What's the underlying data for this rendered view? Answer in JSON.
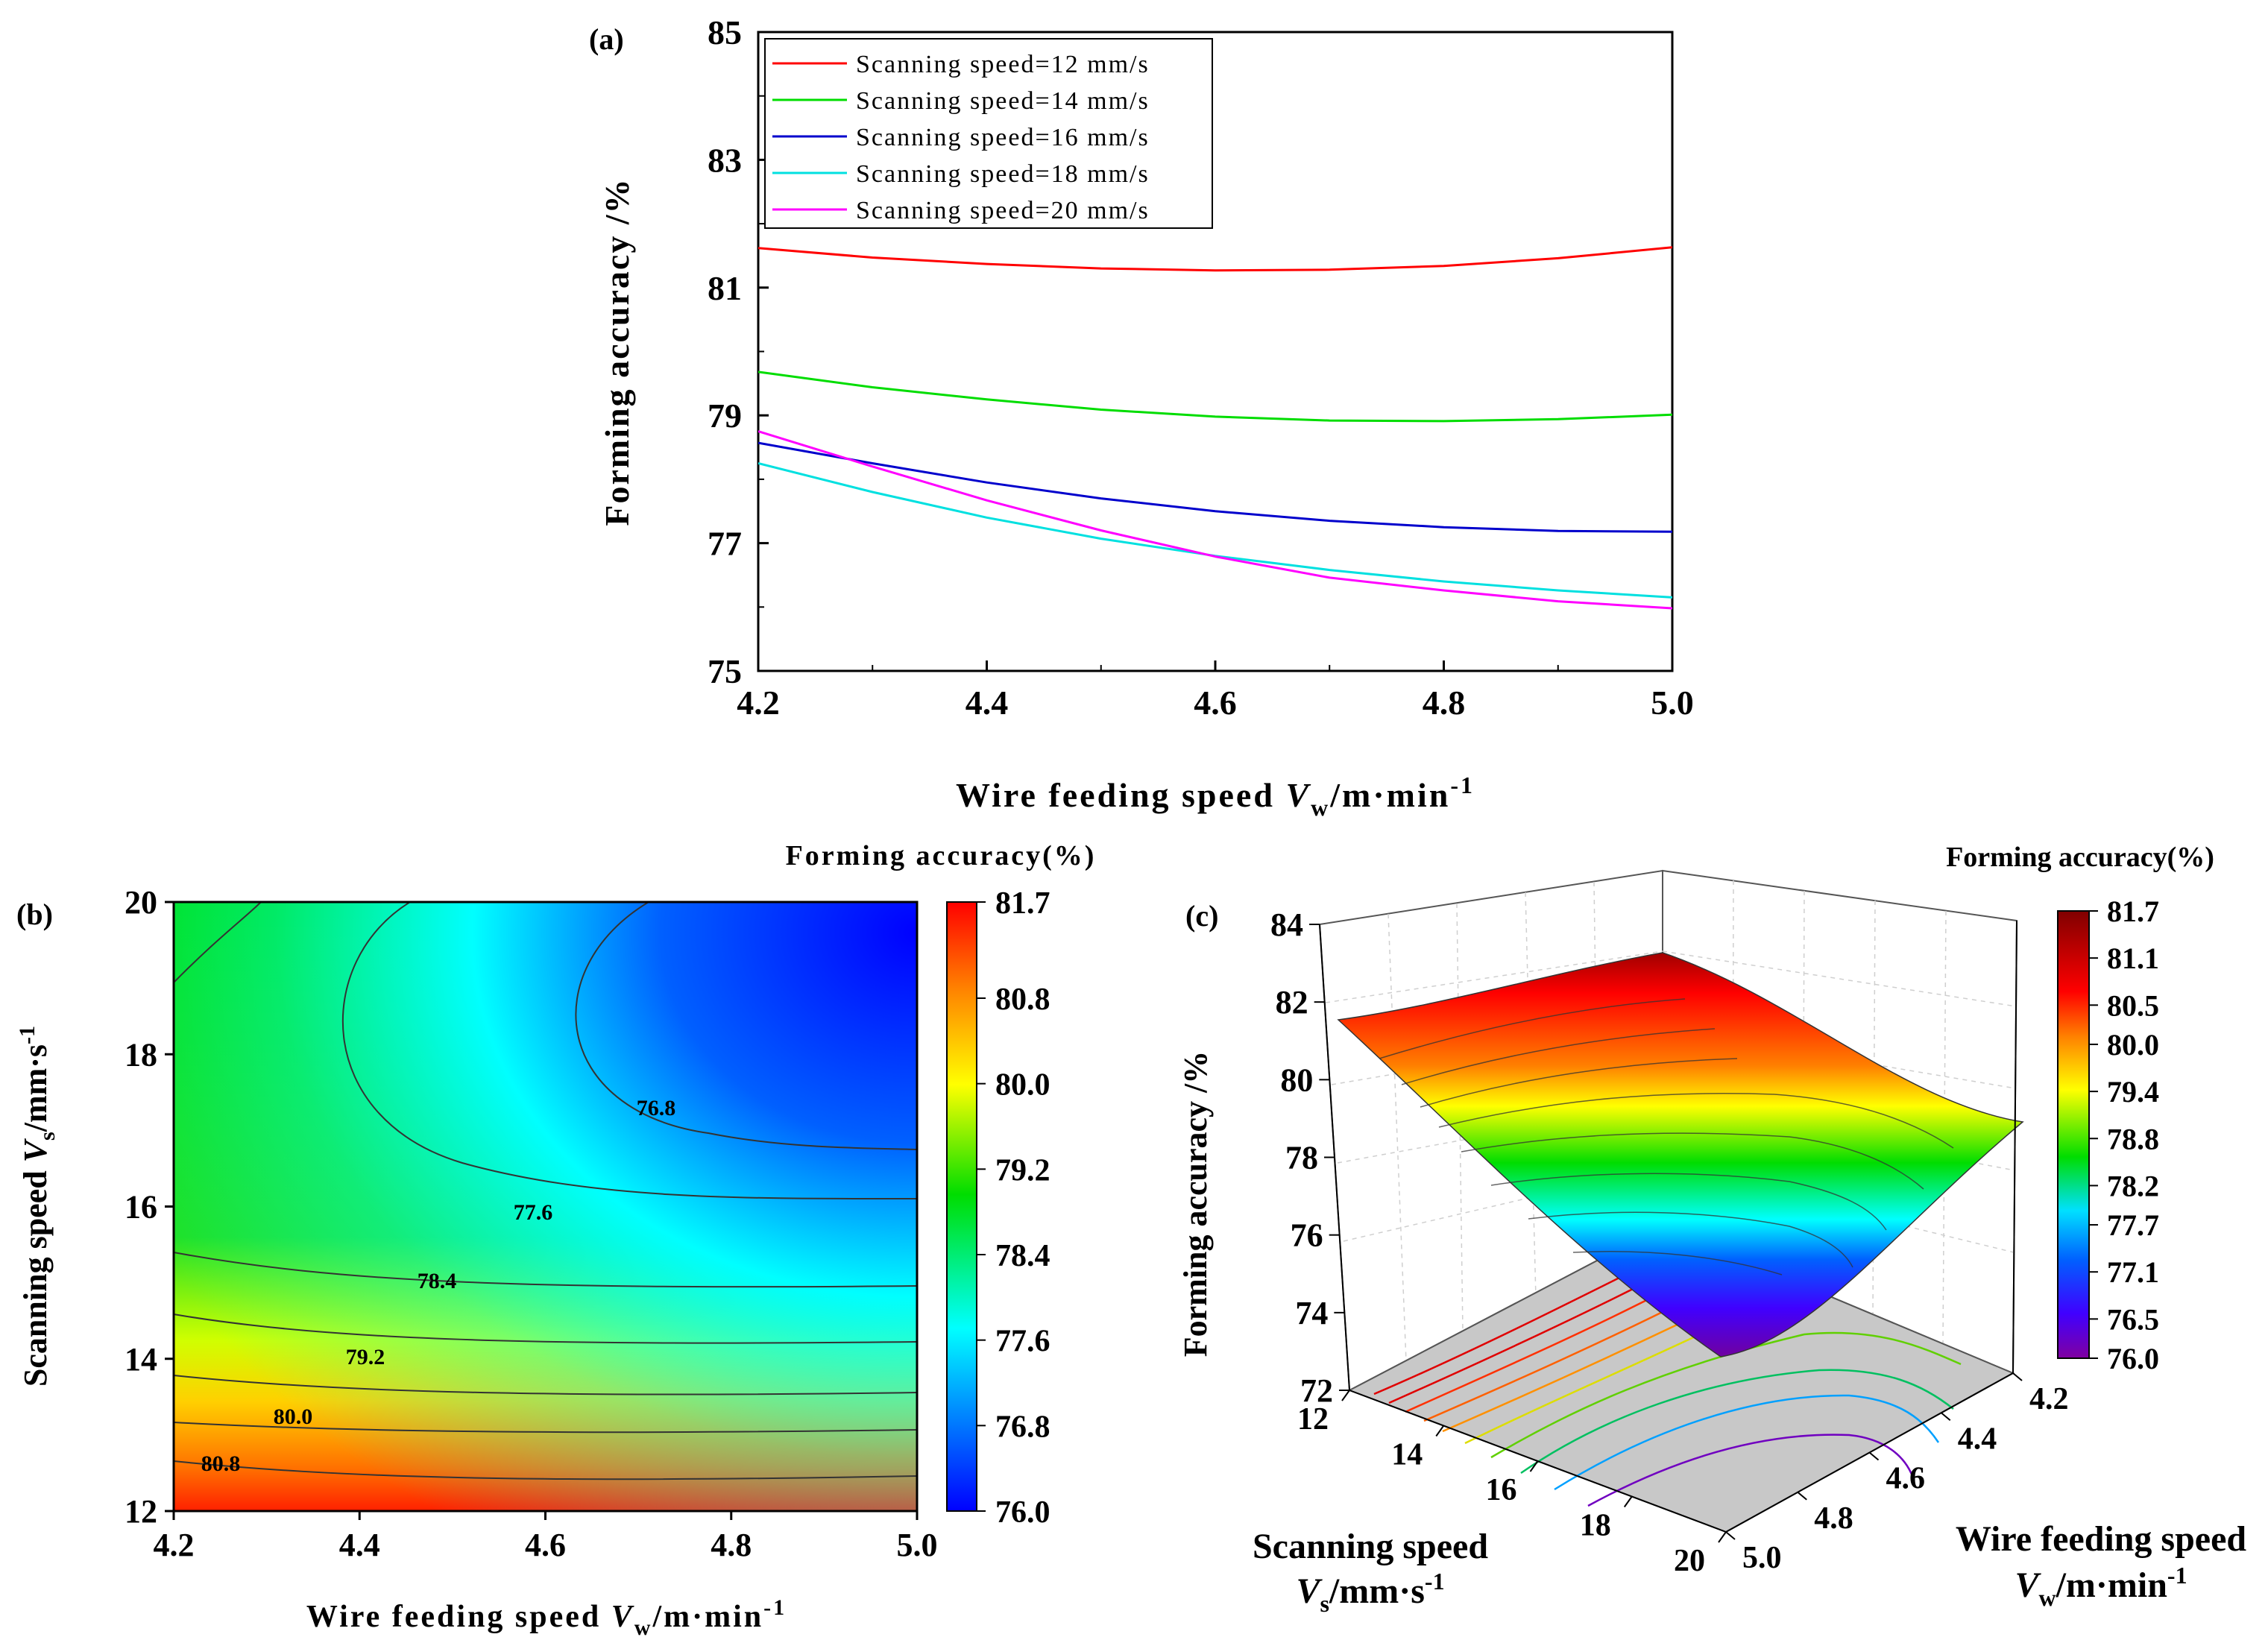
{
  "chart_data": [
    {
      "type": "line",
      "panel_label": "(a)",
      "xlabel_main": "Wire feeding speed ",
      "xlabel_var": "V",
      "xlabel_sub": "w",
      "xlabel_unit": "/m·min",
      "xlabel_sup": "-1",
      "ylabel": "Forming accuracy /%",
      "xlim": [
        4.2,
        5.0
      ],
      "ylim": [
        75,
        85
      ],
      "xticks": [
        "4.2",
        "4.4",
        "4.6",
        "4.8",
        "5.0"
      ],
      "yticks": [
        "75",
        "77",
        "79",
        "81",
        "83",
        "85"
      ],
      "legend_position": "top-left",
      "x": [
        4.2,
        4.3,
        4.4,
        4.5,
        4.6,
        4.7,
        4.8,
        4.9,
        5.0
      ],
      "series": [
        {
          "name": "Scanning speed=12 mm/s",
          "color": "#ff0000",
          "values": [
            81.62,
            81.47,
            81.37,
            81.3,
            81.27,
            81.28,
            81.34,
            81.46,
            81.63
          ]
        },
        {
          "name": "Scanning speed=14 mm/s",
          "color": "#00dd00",
          "values": [
            79.68,
            79.44,
            79.25,
            79.09,
            78.98,
            78.92,
            78.91,
            78.94,
            79.01
          ]
        },
        {
          "name": "Scanning speed=16 mm/s",
          "color": "#0000cc",
          "values": [
            78.57,
            78.25,
            77.95,
            77.7,
            77.5,
            77.35,
            77.25,
            77.19,
            77.18
          ]
        },
        {
          "name": "Scanning speed=18 mm/s",
          "color": "#00e0e0",
          "values": [
            78.25,
            77.8,
            77.4,
            77.07,
            76.8,
            76.58,
            76.4,
            76.26,
            76.15
          ]
        },
        {
          "name": "Scanning speed=20 mm/s",
          "color": "#ff00ff",
          "values": [
            78.75,
            78.2,
            77.67,
            77.2,
            76.79,
            76.46,
            76.26,
            76.09,
            75.98
          ]
        }
      ]
    },
    {
      "type": "heatmap",
      "panel_label": "(b)",
      "title": "Forming accuracy(%)",
      "xlabel_main": "Wire feeding speed ",
      "xlabel_var": "V",
      "xlabel_sub": "w",
      "xlabel_unit": "/m·min",
      "xlabel_sup": "-1",
      "ylabel_main": "Scanning speed ",
      "ylabel_var": "V",
      "ylabel_sub": "s",
      "ylabel_unit": "/mm·s",
      "ylabel_sup": "-1",
      "xlim": [
        4.2,
        5.0
      ],
      "ylim": [
        12,
        20
      ],
      "xticks": [
        "4.2",
        "4.4",
        "4.6",
        "4.8",
        "5.0"
      ],
      "yticks": [
        "12",
        "14",
        "16",
        "18",
        "20"
      ],
      "colorbar_ticks": [
        "76.0",
        "76.8",
        "77.6",
        "78.4",
        "79.2",
        "80.0",
        "80.8",
        "81.7"
      ],
      "colorbar_range": [
        76.0,
        81.7
      ],
      "contour_levels": [
        76.8,
        77.6,
        78.4,
        79.2,
        80.0,
        80.8
      ],
      "contour_labels": [
        "76.8",
        "77.6",
        "78.4",
        "79.2",
        "80.0",
        "80.8"
      ]
    },
    {
      "type": "surface",
      "panel_label": "(c)",
      "title": "Forming accuracy(%)",
      "zlabel": "Forming accuracy /%",
      "xlabel_line1": "Scanning speed",
      "xlabel_var": "V",
      "xlabel_sub": "s",
      "xlabel_unit": "/mm·s",
      "xlabel_sup": "-1",
      "ylabel_line1": "Wire feeding speed",
      "ylabel_var": "V",
      "ylabel_sub": "w",
      "ylabel_unit": "/m·min",
      "ylabel_sup": "-1",
      "zticks": [
        "72",
        "74",
        "76",
        "78",
        "80",
        "82",
        "84"
      ],
      "scan_ticks": [
        "12",
        "14",
        "16",
        "18",
        "20"
      ],
      "wire_ticks": [
        "4.2",
        "4.4",
        "4.6",
        "4.8",
        "5.0"
      ],
      "colorbar_ticks": [
        "76.0",
        "76.5",
        "77.1",
        "77.7",
        "78.2",
        "78.8",
        "79.4",
        "80.0",
        "80.5",
        "81.1",
        "81.7"
      ],
      "colorbar_range": [
        76.0,
        81.7
      ]
    }
  ]
}
